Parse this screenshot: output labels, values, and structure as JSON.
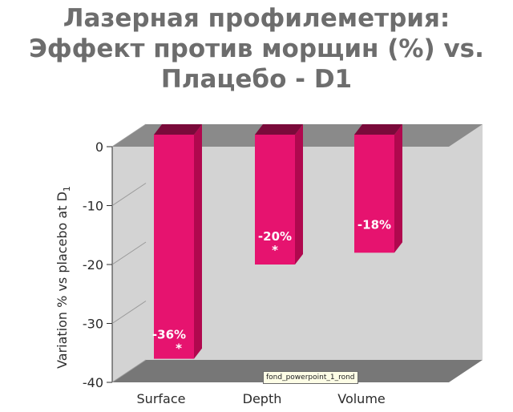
{
  "title_lines": [
    "Лазерная профилеметрия:",
    "Эффект против морщин (%) vs.",
    "Плацебо - D1"
  ],
  "tooltip": "fond_powerpoint_1_rond",
  "colors": {
    "bar_front": "#e6136f",
    "bar_side": "#b0084e",
    "bar_top": "#7a0a3a",
    "wall": "#d3d3d3",
    "wall_top": "#8a8a8a",
    "floor": "#777777",
    "text": "#2b2b2b",
    "title": "#6d6d6d"
  },
  "chart_data": {
    "type": "bar",
    "categories": [
      "Surface",
      "Depth",
      "Volume"
    ],
    "values": [
      -36,
      -20,
      -18
    ],
    "data_labels": [
      "-36%",
      "-20%",
      "-18%"
    ],
    "significance": [
      "*",
      "*",
      ""
    ],
    "ylabel": "Variation % vs placebo at D",
    "ylabel_subscript": "1",
    "yticks": [
      0,
      -10,
      -20,
      -30,
      -40
    ],
    "ylim": [
      -40,
      0
    ],
    "grid": false,
    "three_d": true
  }
}
